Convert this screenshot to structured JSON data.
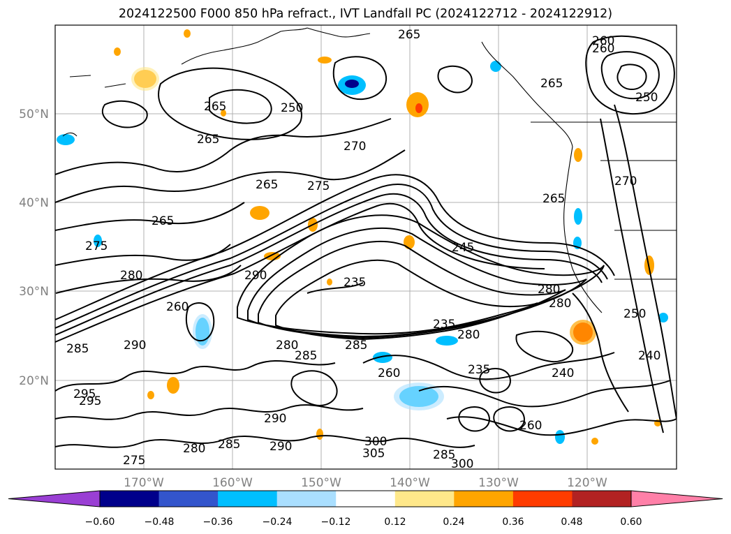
{
  "title": "2024122500 F000 850 hPa refract., IVT Landfall PC (2024122712 - 2024122912)",
  "lat_labels": [
    "50°N",
    "40°N",
    "30°N",
    "20°N"
  ],
  "lon_labels": [
    "170°W",
    "160°W",
    "150°W",
    "140°W",
    "130°W",
    "120°W"
  ],
  "contour_labels": [
    "265",
    "260",
    "265",
    "250",
    "265",
    "260",
    "265",
    "270",
    "265",
    "275",
    "250",
    "265",
    "275",
    "245",
    "235",
    "280",
    "290",
    "270",
    "265",
    "285",
    "290",
    "285",
    "280",
    "285",
    "280",
    "235",
    "260",
    "280",
    "295",
    "290",
    "285",
    "280",
    "275",
    "300",
    "305",
    "285",
    "300",
    "235",
    "240",
    "260",
    "280",
    "250",
    "240",
    "260",
    "295",
    "290"
  ],
  "colorbar": {
    "ticks": [
      "−0.60",
      "−0.48",
      "−0.36",
      "−0.24",
      "−0.12",
      "0.12",
      "0.24",
      "0.36",
      "0.48",
      "0.60"
    ],
    "colors": [
      "#9a3fd4",
      "#00008b",
      "#3355cc",
      "#00bfff",
      "#aadfff",
      "#ffffff",
      "#ffe88a",
      "#ffa500",
      "#ff3c00",
      "#b22222",
      "#ff80a8"
    ]
  }
}
